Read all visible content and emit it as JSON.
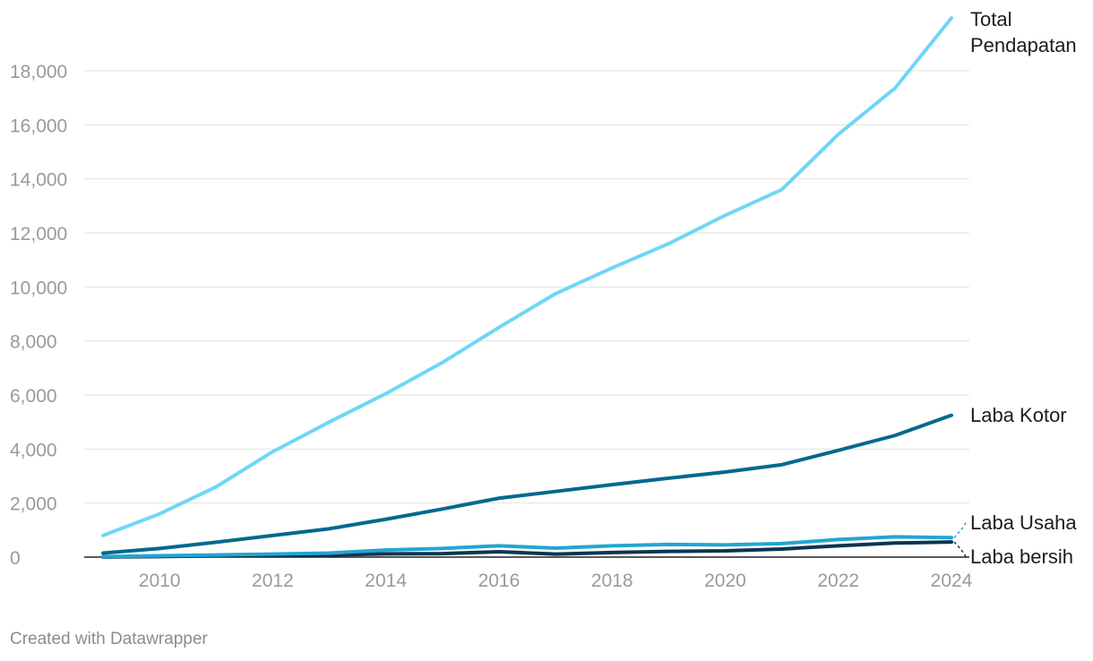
{
  "chart_data": {
    "type": "line",
    "x": [
      2009,
      2010,
      2011,
      2012,
      2013,
      2014,
      2015,
      2016,
      2017,
      2018,
      2019,
      2020,
      2021,
      2022,
      2023,
      2024
    ],
    "x_ticks": [
      2010,
      2012,
      2014,
      2016,
      2018,
      2020,
      2022,
      2024
    ],
    "x_tick_labels": [
      "2010",
      "2012",
      "2014",
      "2016",
      "2018",
      "2020",
      "2022",
      "2024"
    ],
    "y_ticks": [
      0,
      2000,
      4000,
      6000,
      8000,
      10000,
      12000,
      14000,
      16000,
      18000
    ],
    "y_tick_labels": [
      "0",
      "2,000",
      "4,000",
      "6,000",
      "8,000",
      "10,000",
      "12,000",
      "14,000",
      "16,000",
      "18,000"
    ],
    "xlim": [
      2009,
      2024
    ],
    "ylim": [
      0,
      20000
    ],
    "grid": true,
    "legend": "direct labels at right end of lines",
    "series": [
      {
        "name": "Total Pendapatan",
        "label_lines": [
          "Total",
          "Pendapatan"
        ],
        "color": "#6fd6f7",
        "values": [
          800,
          1600,
          2600,
          3900,
          5000,
          6050,
          7200,
          8500,
          9750,
          10700,
          11600,
          12650,
          13600,
          15650,
          17350,
          19950
        ]
      },
      {
        "name": "Laba Kotor",
        "label_lines": [
          "Laba Kotor"
        ],
        "color": "#02698e",
        "values": [
          150,
          320,
          550,
          800,
          1050,
          1400,
          1780,
          2180,
          2430,
          2680,
          2920,
          3150,
          3420,
          3950,
          4500,
          5250
        ]
      },
      {
        "name": "Laba Usaha",
        "label_lines": [
          "Laba Usaha"
        ],
        "color": "#22a6d2",
        "values": [
          20,
          50,
          80,
          110,
          150,
          260,
          320,
          420,
          330,
          420,
          470,
          450,
          500,
          650,
          750,
          720
        ]
      },
      {
        "name": "Laba bersih",
        "label_lines": [
          "Laba bersih"
        ],
        "color": "#0a3552",
        "values": [
          5,
          20,
          50,
          70,
          80,
          120,
          130,
          200,
          110,
          170,
          210,
          230,
          300,
          420,
          520,
          560
        ]
      }
    ]
  },
  "footer": {
    "credit": "Created with Datawrapper"
  }
}
